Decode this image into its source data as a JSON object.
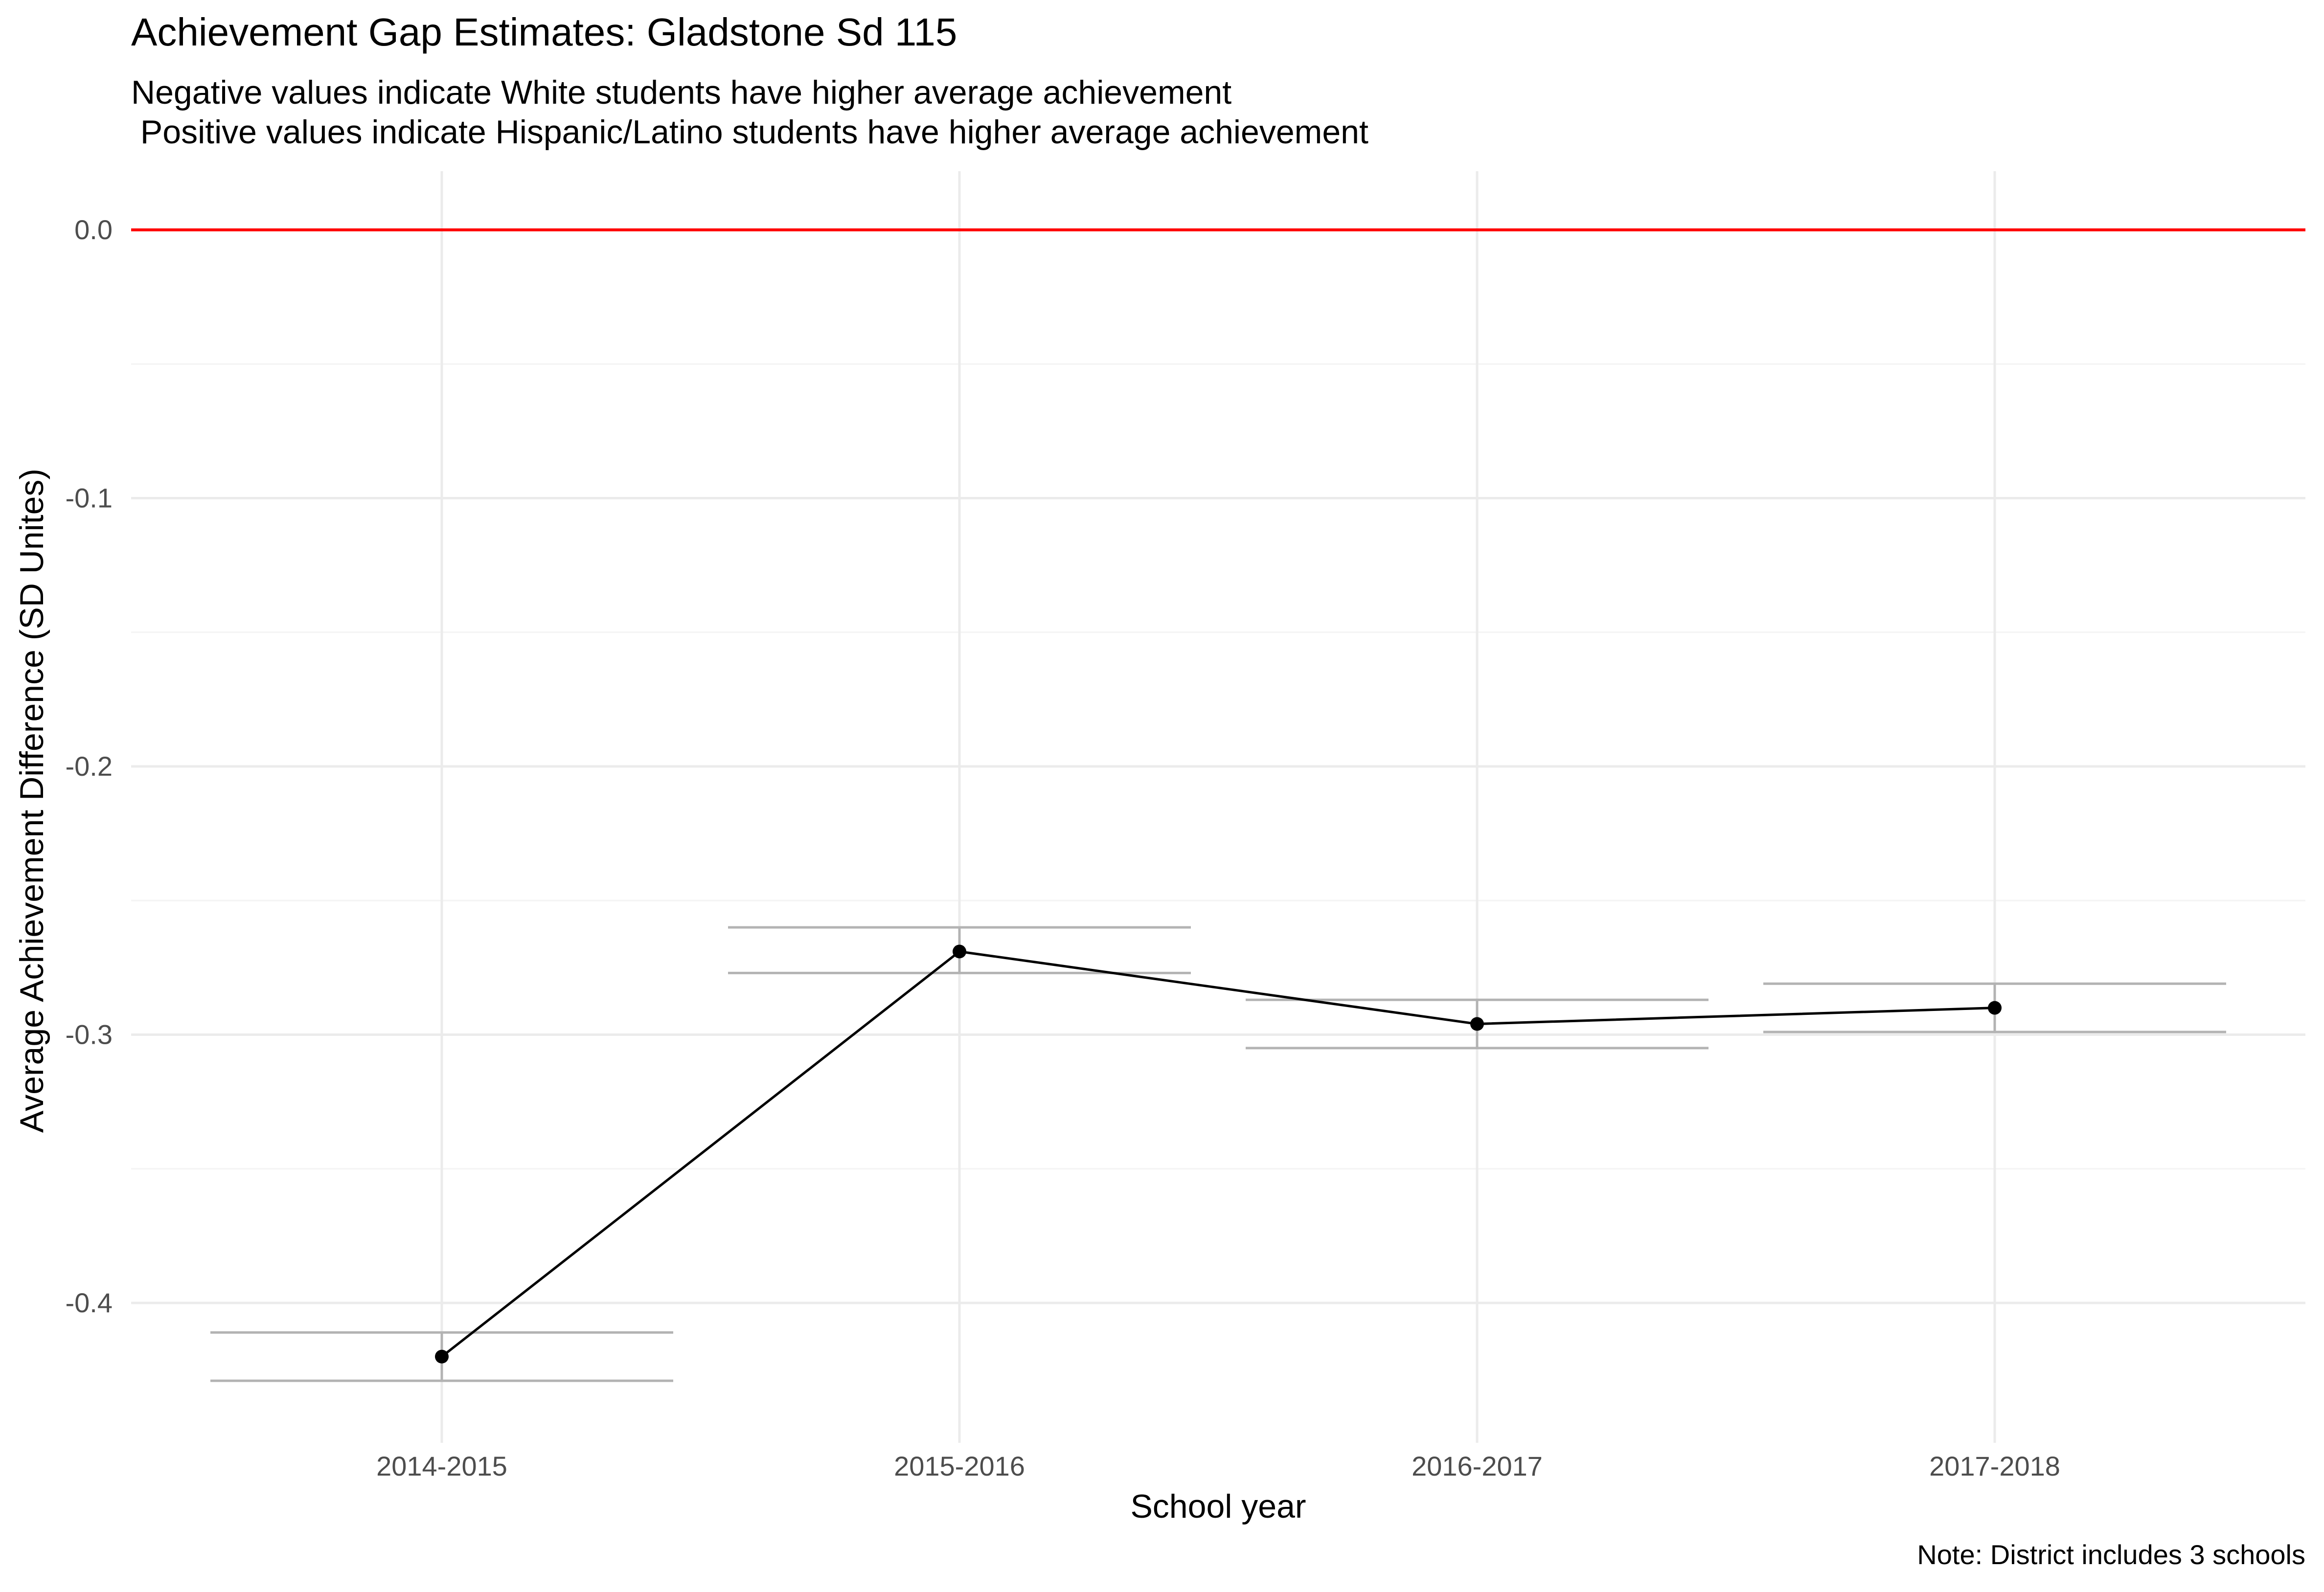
{
  "chart_data": {
    "type": "line",
    "title": "Achievement Gap Estimates: Gladstone Sd 115",
    "subtitle_lines": [
      "Negative values indicate White students have higher average achievement",
      " Positive values indicate Hispanic/Latino students have higher average achievement"
    ],
    "xlabel": "School year",
    "ylabel": "Average Achievement Difference (SD Unites)",
    "caption": "Note: District includes 3 schools",
    "categories": [
      "2014-2015",
      "2015-2016",
      "2016-2017",
      "2017-2018"
    ],
    "series": [
      {
        "values": [
          -0.42,
          -0.269,
          -0.296,
          -0.29
        ],
        "error_low": [
          -0.429,
          -0.277,
          -0.305,
          -0.299
        ],
        "error_high": [
          -0.411,
          -0.26,
          -0.287,
          -0.281
        ],
        "color": "#000000"
      }
    ],
    "reference_line": {
      "y": 0,
      "color": "#ff0000"
    },
    "ylim": [
      -0.45,
      0.021
    ],
    "yticks": [
      0.0,
      -0.1,
      -0.2,
      -0.3,
      -0.4
    ],
    "ytick_labels": [
      "0.0",
      "-0.1",
      "-0.2",
      "-0.3",
      "-0.4"
    ],
    "grid": true,
    "legend": "none",
    "colors": {
      "errorbar": "#b3b3b3",
      "grid_major": "#ebebeb",
      "grid_minor": "#f4f4f4",
      "axis_text": "#4d4d4d",
      "text": "#000000"
    }
  }
}
